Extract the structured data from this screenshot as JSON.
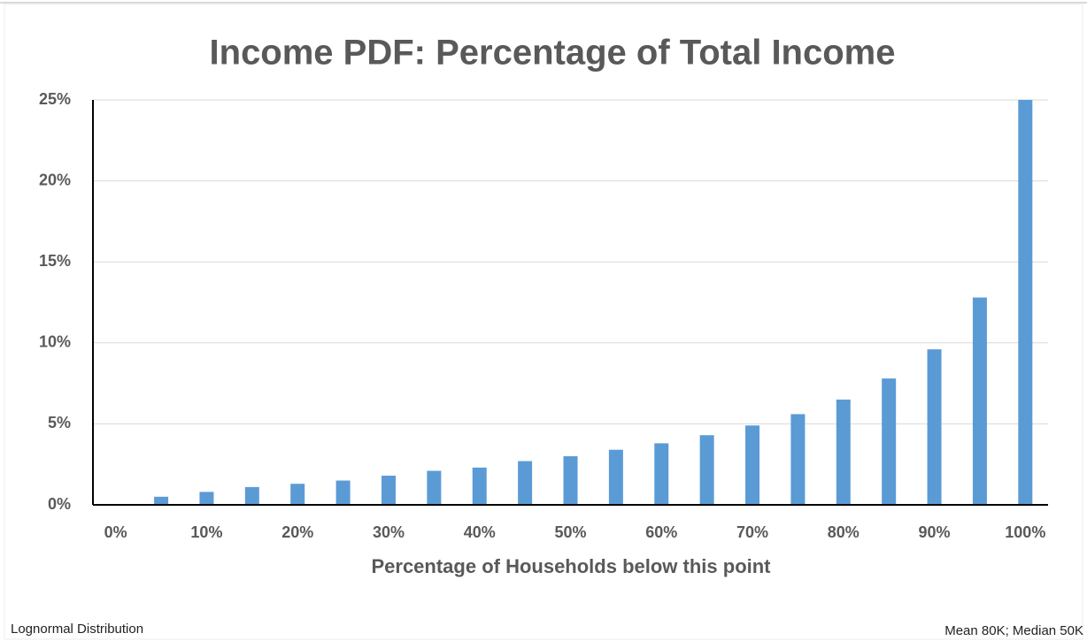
{
  "chart_data": {
    "type": "bar",
    "title": "Income PDF: Percentage of Total Income",
    "x_label": "Percentage of Households below this point",
    "categories": [
      "0%",
      null,
      "10%",
      null,
      "20%",
      null,
      "30%",
      null,
      "40%",
      null,
      "50%",
      null,
      "60%",
      null,
      "70%",
      null,
      "80%",
      null,
      "90%",
      null,
      "100%"
    ],
    "values": [
      0,
      0.5,
      0.8,
      1.1,
      1.3,
      1.5,
      1.8,
      2.1,
      2.3,
      2.7,
      3.0,
      3.4,
      3.8,
      4.3,
      4.9,
      5.6,
      6.5,
      7.8,
      9.6,
      12.8,
      25
    ],
    "color": "#5b9bd5",
    "ylim": [
      0,
      25
    ],
    "yticks": [
      {
        "value": 0,
        "label": "0%"
      },
      {
        "value": 5,
        "label": "5%"
      },
      {
        "value": 10,
        "label": "10%"
      },
      {
        "value": 15,
        "label": "15%"
      },
      {
        "value": 20,
        "label": "20%"
      },
      {
        "value": 25,
        "label": "25%"
      }
    ],
    "grid": true,
    "notes": [
      "Lognormal Distribution",
      "Mean 80K; Median 50K"
    ]
  }
}
